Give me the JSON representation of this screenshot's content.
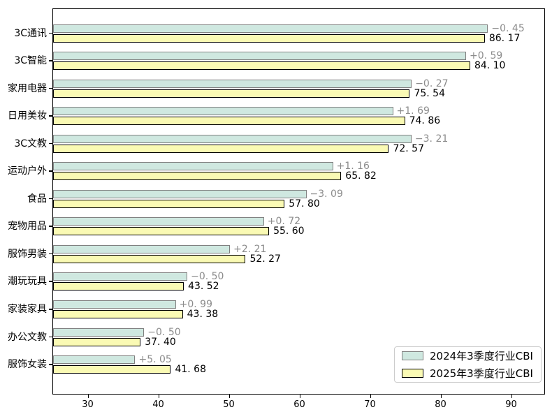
{
  "chart_data": {
    "type": "bar",
    "orientation": "horizontal",
    "title": "",
    "xlabel": "",
    "ylabel": "",
    "categories": [
      "3C通讯",
      "3C智能",
      "家用电器",
      "日用美妆",
      "3C文教",
      "运动户外",
      "食品",
      "宠物用品",
      "服饰男装",
      "潮玩玩具",
      "家装家具",
      "办公文教",
      "服饰女装"
    ],
    "series": [
      {
        "name": "2024年3季度行业CBI",
        "fill": "#cfe8e0",
        "edge": "#808080",
        "values": [
          86.62,
          83.51,
          75.81,
          73.17,
          75.78,
          64.66,
          60.89,
          54.88,
          50.06,
          44.02,
          42.39,
          37.9,
          36.63
        ]
      },
      {
        "name": "2025年3季度行业CBI",
        "fill": "#fafab4",
        "edge": "#000000",
        "values": [
          86.17,
          84.1,
          75.54,
          74.86,
          72.57,
          65.82,
          57.8,
          55.6,
          52.27,
          43.52,
          43.38,
          37.4,
          41.68
        ]
      }
    ],
    "delta_labels": [
      "−0. 45",
      "+0. 59",
      "−0. 27",
      "+1. 69",
      "−3. 21",
      "+1. 16",
      "−3. 09",
      "+0. 72",
      "+2. 21",
      "−0. 50",
      "+0. 99",
      "−0. 50",
      "+5. 05"
    ],
    "value_labels": [
      "86. 17",
      "84. 10",
      "75. 54",
      "74. 86",
      "72. 57",
      "65. 82",
      "57. 80",
      "55. 60",
      "52. 27",
      "43. 52",
      "43. 38",
      "37. 40",
      "41. 68"
    ],
    "xticks": [
      "30",
      "40",
      "50",
      "60",
      "70",
      "80",
      "90"
    ],
    "xlim": [
      25,
      94.6
    ],
    "grid": false,
    "legend_position": "lower right",
    "colors": {
      "delta_text": "#8c8c8c",
      "value_text": "#000000",
      "axis": "#000000",
      "background": "#ffffff"
    }
  },
  "legend": {
    "entries": [
      {
        "label": "2024年3季度行业CBI",
        "fill": "#cfe8e0",
        "edge": "#808080"
      },
      {
        "label": "2025年3季度行业CBI",
        "fill": "#fafab4",
        "edge": "#000000"
      }
    ]
  }
}
